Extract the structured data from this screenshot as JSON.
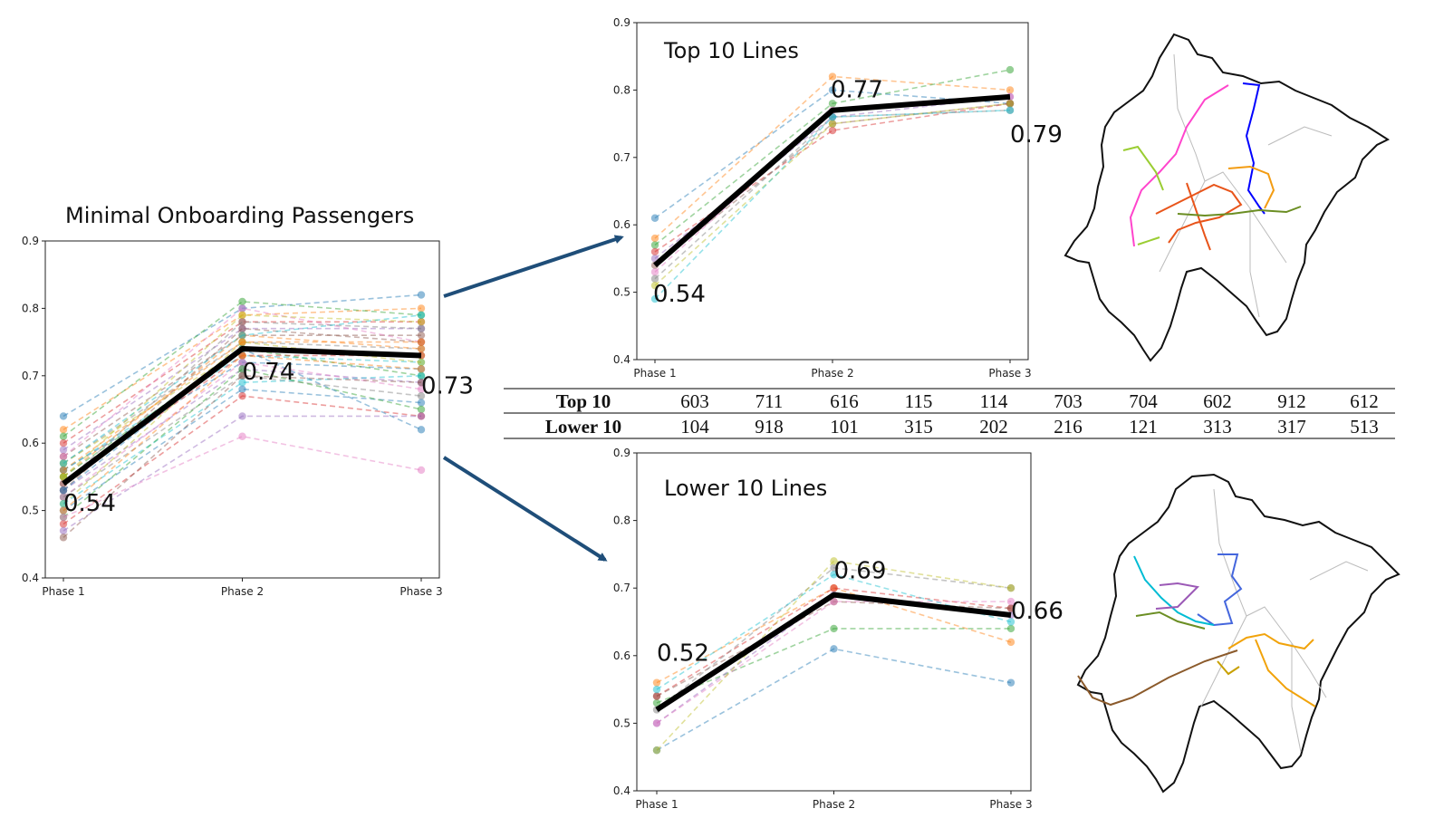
{
  "colors": {
    "average": "#000000",
    "arrow": "#1f4e79",
    "palette": [
      "#1f77b4",
      "#ff7f0e",
      "#2ca02c",
      "#d62728",
      "#9467bd",
      "#8c564b",
      "#e377c2",
      "#7f7f7f",
      "#bcbd22",
      "#17becf"
    ]
  },
  "chart_data": [
    {
      "id": "minimal",
      "type": "line",
      "title": "Minimal Onboarding Passengers",
      "categories": [
        "Phase 1",
        "Phase 2",
        "Phase 3"
      ],
      "ylim": [
        0.4,
        0.9
      ],
      "yticks": [
        "0.4",
        "0.5",
        "0.6",
        "0.7",
        "0.8",
        "0.9"
      ],
      "average": {
        "values": [
          0.54,
          0.74,
          0.73
        ],
        "labels": [
          "0.54",
          "0.74",
          "0.73"
        ]
      },
      "series": [
        {
          "values": [
            0.64,
            0.8,
            0.82
          ]
        },
        {
          "values": [
            0.62,
            0.79,
            0.8
          ]
        },
        {
          "values": [
            0.61,
            0.81,
            0.79
          ]
        },
        {
          "values": [
            0.6,
            0.78,
            0.78
          ]
        },
        {
          "values": [
            0.59,
            0.77,
            0.77
          ]
        },
        {
          "values": [
            0.58,
            0.76,
            0.76
          ]
        },
        {
          "values": [
            0.58,
            0.8,
            0.75
          ]
        },
        {
          "values": [
            0.57,
            0.75,
            0.74
          ]
        },
        {
          "values": [
            0.57,
            0.74,
            0.73
          ]
        },
        {
          "values": [
            0.56,
            0.73,
            0.72
          ]
        },
        {
          "values": [
            0.56,
            0.72,
            0.71
          ]
        },
        {
          "values": [
            0.55,
            0.76,
            0.74
          ]
        },
        {
          "values": [
            0.55,
            0.74,
            0.7
          ]
        },
        {
          "values": [
            0.54,
            0.73,
            0.73
          ]
        },
        {
          "values": [
            0.53,
            0.71,
            0.69
          ]
        },
        {
          "values": [
            0.53,
            0.77,
            0.75
          ]
        },
        {
          "values": [
            0.52,
            0.72,
            0.68
          ]
        },
        {
          "values": [
            0.52,
            0.7,
            0.67
          ]
        },
        {
          "values": [
            0.51,
            0.75,
            0.72
          ]
        },
        {
          "values": [
            0.51,
            0.69,
            0.7
          ]
        },
        {
          "values": [
            0.5,
            0.68,
            0.66
          ]
        },
        {
          "values": [
            0.5,
            0.73,
            0.71
          ]
        },
        {
          "values": [
            0.49,
            0.71,
            0.65
          ]
        },
        {
          "values": [
            0.48,
            0.67,
            0.64
          ]
        },
        {
          "values": [
            0.47,
            0.64,
            0.64
          ]
        },
        {
          "values": [
            0.46,
            0.7,
            0.69
          ]
        },
        {
          "values": [
            0.49,
            0.61,
            0.56
          ]
        },
        {
          "values": [
            0.54,
            0.78,
            0.77
          ]
        },
        {
          "values": [
            0.55,
            0.79,
            0.78
          ]
        },
        {
          "values": [
            0.57,
            0.76,
            0.79
          ]
        },
        {
          "values": [
            0.53,
            0.74,
            0.62
          ]
        },
        {
          "values": [
            0.56,
            0.75,
            0.75
          ]
        }
      ]
    },
    {
      "id": "top10",
      "type": "line",
      "title": "Top 10 Lines",
      "categories": [
        "Phase 1",
        "Phase 2",
        "Phase 3"
      ],
      "ylim": [
        0.4,
        0.9
      ],
      "yticks": [
        "0.4",
        "0.5",
        "0.6",
        "0.7",
        "0.8",
        "0.9"
      ],
      "average": {
        "values": [
          0.54,
          0.77,
          0.79
        ],
        "labels": [
          "0.54",
          "0.77",
          "0.79"
        ]
      },
      "series": [
        {
          "values": [
            0.61,
            0.8,
            0.78
          ]
        },
        {
          "values": [
            0.58,
            0.82,
            0.8
          ]
        },
        {
          "values": [
            0.57,
            0.78,
            0.83
          ]
        },
        {
          "values": [
            0.56,
            0.74,
            0.78
          ]
        },
        {
          "values": [
            0.55,
            0.76,
            0.79
          ]
        },
        {
          "values": [
            0.54,
            0.75,
            0.78
          ]
        },
        {
          "values": [
            0.53,
            0.77,
            0.79
          ]
        },
        {
          "values": [
            0.52,
            0.76,
            0.77
          ]
        },
        {
          "values": [
            0.51,
            0.75,
            0.78
          ]
        },
        {
          "values": [
            0.49,
            0.76,
            0.77
          ]
        }
      ]
    },
    {
      "id": "lower10",
      "type": "line",
      "title": "Lower 10 Lines",
      "categories": [
        "Phase 1",
        "Phase 2",
        "Phase 3"
      ],
      "ylim": [
        0.4,
        0.9
      ],
      "yticks": [
        "0.4",
        "0.5",
        "0.6",
        "0.7",
        "0.8",
        "0.9"
      ],
      "average": {
        "values": [
          0.52,
          0.69,
          0.66
        ],
        "labels": [
          "0.52",
          "0.69",
          "0.66"
        ]
      },
      "series": [
        {
          "values": [
            0.46,
            0.61,
            0.56
          ]
        },
        {
          "values": [
            0.56,
            0.7,
            0.62
          ]
        },
        {
          "values": [
            0.53,
            0.64,
            0.64
          ]
        },
        {
          "values": [
            0.54,
            0.7,
            0.67
          ]
        },
        {
          "values": [
            0.5,
            0.69,
            0.66
          ]
        },
        {
          "values": [
            0.54,
            0.68,
            0.67
          ]
        },
        {
          "values": [
            0.5,
            0.68,
            0.68
          ]
        },
        {
          "values": [
            0.52,
            0.73,
            0.7
          ]
        },
        {
          "values": [
            0.46,
            0.74,
            0.7
          ]
        },
        {
          "values": [
            0.55,
            0.72,
            0.65
          ]
        }
      ]
    }
  ],
  "table": {
    "rows": [
      {
        "label": "Top 10",
        "values": [
          "603",
          "711",
          "616",
          "115",
          "114",
          "703",
          "704",
          "602",
          "912",
          "612"
        ]
      },
      {
        "label": "Lower 10",
        "values": [
          "104",
          "918",
          "101",
          "315",
          "202",
          "216",
          "121",
          "313",
          "317",
          "513"
        ]
      }
    ]
  },
  "maps": [
    {
      "id": "top-map",
      "routes": [
        "#0000ff",
        "#ff44cc",
        "#f39c12",
        "#e8541a",
        "#9acd32",
        "#6b8e23",
        "#ff7f0e"
      ]
    },
    {
      "id": "lower-map",
      "routes": [
        "#4466dd",
        "#00bcd4",
        "#9b59b6",
        "#f1a30b",
        "#8b5a2b",
        "#6b8e23",
        "#c8a000"
      ]
    }
  ]
}
